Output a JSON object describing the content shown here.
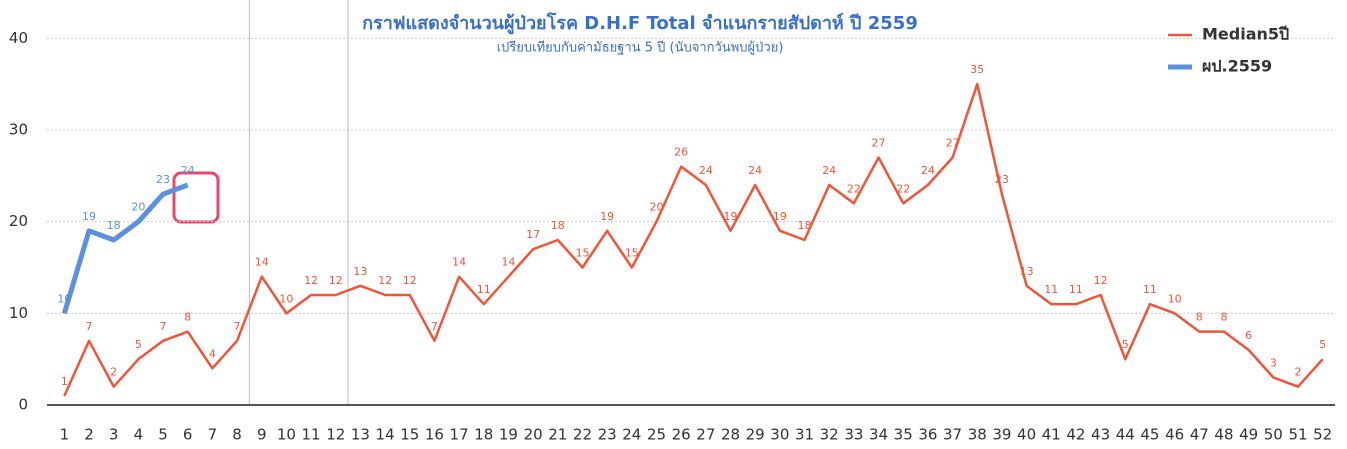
{
  "chart_data": {
    "type": "line",
    "title": "กราฟแสดงจำนวนผู้ป่วยโรค D.H.F Total จำแนกรายสัปดาห์ ปี 2559",
    "subtitle": "เปรียบเทียบกับค่ามัธยฐาน 5 ปี (นับจากวันพบผู้ป่วย)",
    "categories": [
      "1",
      "2",
      "3",
      "4",
      "5",
      "6",
      "7",
      "8",
      "9",
      "10",
      "11",
      "12",
      "13",
      "14",
      "15",
      "16",
      "17",
      "18",
      "19",
      "20",
      "21",
      "22",
      "23",
      "24",
      "25",
      "26",
      "27",
      "28",
      "29",
      "30",
      "31",
      "32",
      "33",
      "34",
      "35",
      "36",
      "37",
      "38",
      "39",
      "40",
      "41",
      "42",
      "43",
      "44",
      "45",
      "46",
      "47",
      "48",
      "49",
      "50",
      "51",
      "52"
    ],
    "series": [
      {
        "name": "Median5ปี",
        "color": "#f0553a",
        "values": [
          1,
          7,
          2,
          5,
          7,
          8,
          4,
          7,
          14,
          10,
          12,
          12,
          13,
          12,
          12,
          7,
          14,
          11,
          14,
          17,
          18,
          15,
          19,
          15,
          20,
          26,
          24,
          19,
          24,
          19,
          18,
          24,
          22,
          27,
          22,
          24,
          27,
          35,
          23,
          13,
          11,
          11,
          12,
          5,
          11,
          10,
          8,
          8,
          6,
          3,
          2,
          5
        ]
      },
      {
        "name": "ผป.2559",
        "color": "#5b8fe0",
        "values": [
          10,
          19,
          18,
          20,
          23,
          24,
          null,
          null,
          null,
          null,
          null,
          null,
          null,
          null,
          null,
          null,
          null,
          null,
          null,
          null,
          null,
          null,
          null,
          null,
          null,
          null,
          null,
          null,
          null,
          null,
          null,
          null,
          null,
          null,
          null,
          null,
          null,
          null,
          null,
          null,
          null,
          null,
          null,
          null,
          null,
          null,
          null,
          null,
          null,
          null,
          null,
          null
        ]
      }
    ],
    "ylim": [
      0,
      42
    ],
    "yticks": [
      0,
      10,
      20,
      30,
      40
    ],
    "grid": true
  }
}
